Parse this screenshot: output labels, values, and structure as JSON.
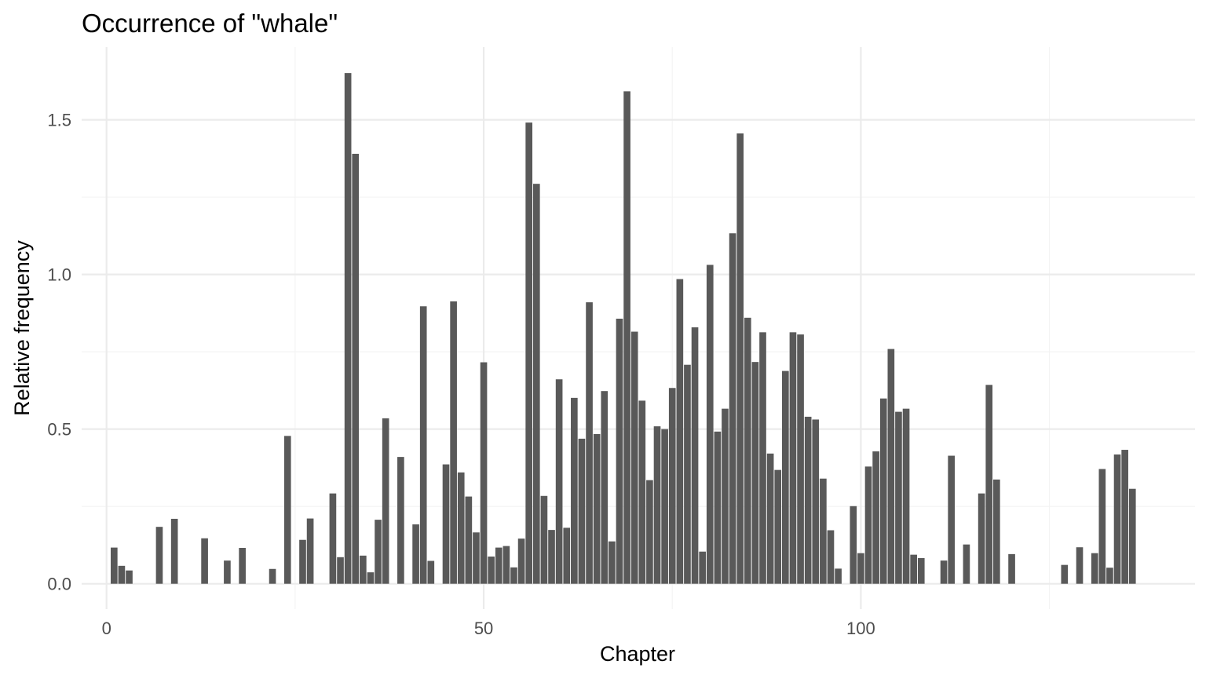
{
  "chart_data": {
    "type": "bar",
    "title": "Occurrence of \"whale\"",
    "xlabel": "Chapter",
    "ylabel": "Relative frequency",
    "xlim": [
      -3.3,
      144.3
    ],
    "ylim": [
      -0.082,
      1.735
    ],
    "x_ticks": [
      0,
      50,
      100
    ],
    "y_ticks": [
      0.0,
      0.5,
      1.0,
      1.5
    ],
    "x_tick_labels": [
      "0",
      "50",
      "100"
    ],
    "y_tick_labels": [
      "0.0",
      "0.5",
      "1.0",
      "1.5"
    ],
    "grid": true,
    "legend": "none",
    "bar_color": "#595959",
    "x": [
      1,
      2,
      3,
      7,
      9,
      13,
      16,
      18,
      22,
      24,
      26,
      27,
      30,
      31,
      32,
      33,
      34,
      35,
      36,
      37,
      39,
      41,
      42,
      43,
      45,
      46,
      47,
      48,
      49,
      50,
      51,
      52,
      53,
      54,
      55,
      56,
      57,
      58,
      59,
      60,
      61,
      62,
      63,
      64,
      65,
      66,
      67,
      68,
      69,
      70,
      71,
      72,
      73,
      74,
      75,
      76,
      77,
      78,
      79,
      80,
      81,
      82,
      83,
      84,
      85,
      86,
      87,
      88,
      89,
      90,
      91,
      92,
      93,
      94,
      95,
      96,
      97,
      99,
      100,
      101,
      102,
      103,
      104,
      105,
      106,
      107,
      108,
      111,
      112,
      114,
      116,
      117,
      118,
      120,
      127,
      129,
      131,
      132,
      133,
      134,
      135,
      136
    ],
    "values": [
      0.117,
      0.058,
      0.043,
      0.184,
      0.21,
      0.147,
      0.075,
      0.116,
      0.048,
      0.478,
      0.142,
      0.211,
      0.292,
      0.086,
      1.651,
      1.39,
      0.091,
      0.037,
      0.207,
      0.535,
      0.41,
      0.192,
      0.897,
      0.074,
      0.386,
      0.913,
      0.36,
      0.282,
      0.166,
      0.716,
      0.088,
      0.117,
      0.122,
      0.053,
      0.146,
      1.491,
      1.293,
      0.284,
      0.174,
      0.661,
      0.181,
      0.601,
      0.469,
      0.91,
      0.484,
      0.623,
      0.137,
      0.857,
      1.592,
      0.815,
      0.592,
      0.335,
      0.509,
      0.5,
      0.633,
      0.985,
      0.708,
      0.829,
      0.104,
      1.031,
      0.492,
      0.566,
      1.133,
      1.456,
      0.86,
      0.717,
      0.813,
      0.421,
      0.368,
      0.688,
      0.813,
      0.806,
      0.54,
      0.531,
      0.34,
      0.173,
      0.049,
      0.251,
      0.099,
      0.379,
      0.428,
      0.599,
      0.759,
      0.556,
      0.566,
      0.094,
      0.083,
      0.075,
      0.414,
      0.127,
      0.292,
      0.643,
      0.337,
      0.096,
      0.061,
      0.118,
      0.099,
      0.371,
      0.052,
      0.418,
      0.433,
      0.307
    ]
  }
}
